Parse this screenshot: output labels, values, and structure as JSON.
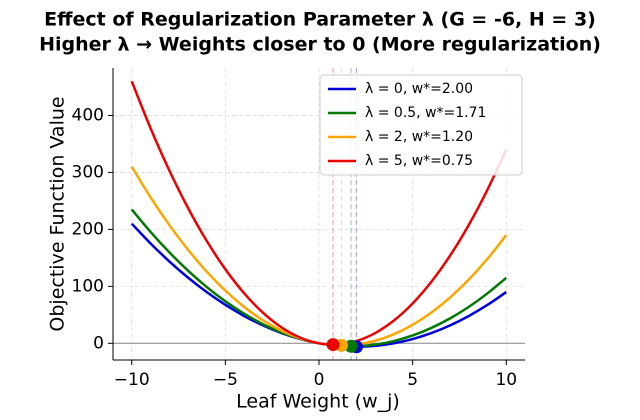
{
  "chart_data": {
    "type": "line",
    "title": "Effect of Regularization Parameter λ (G = -6, H = 3)",
    "subtitle": "Higher λ → Weights closer to 0 (More regularization)",
    "x_label": "Leaf Weight (w_j)",
    "y_label": "Objective Function Value",
    "x": [
      -10,
      -9,
      -8,
      -7,
      -6,
      -5,
      -4,
      -3,
      -2,
      -1,
      0,
      1,
      2,
      3,
      4,
      5,
      6,
      7,
      8,
      9,
      10
    ],
    "series": [
      {
        "name": "λ = 0, w*=2.00",
        "color": "#0000dd",
        "values": [
          210,
          175.5,
          144,
          115.5,
          90,
          67.5,
          48,
          31.5,
          18,
          7.5,
          0,
          -4.5,
          -6,
          -4.5,
          0,
          7.5,
          18,
          31.5,
          48,
          67.5,
          90
        ],
        "optimum": {
          "x": 2.0,
          "y": -6
        }
      },
      {
        "name": "λ = 0.5, w*=1.71",
        "color": "#007a00",
        "values": [
          235,
          195.75,
          160,
          127.75,
          99,
          73.75,
          52,
          33.75,
          19,
          7.75,
          0,
          -4.25,
          -5,
          -2.25,
          4,
          13.75,
          27,
          43.75,
          64,
          87.75,
          115
        ],
        "optimum": {
          "x": 1.7142857,
          "y": -5.142857
        }
      },
      {
        "name": "λ = 2, w*=1.20",
        "color": "#ffa500",
        "values": [
          310,
          256.5,
          208,
          164.5,
          126,
          92.5,
          64,
          40.5,
          22,
          8.5,
          0,
          -3.5,
          -2,
          4.5,
          16,
          32.5,
          54,
          80.5,
          112,
          148.5,
          190
        ],
        "optimum": {
          "x": 1.2,
          "y": -3.6
        }
      },
      {
        "name": "λ = 5, w*=0.75",
        "color": "#ee0000",
        "values": [
          460,
          378,
          304,
          238,
          180,
          130,
          88,
          54,
          28,
          10,
          0,
          -2,
          4,
          18,
          40,
          70,
          108,
          154,
          208,
          270,
          340
        ],
        "optimum": {
          "x": 0.75,
          "y": -2.25
        }
      }
    ],
    "xlim": [
      -11,
      11
    ],
    "ylim": [
      -29.3,
      483.3
    ],
    "xticks": [
      {
        "value": -10,
        "label": "−10"
      },
      {
        "value": -5,
        "label": "−5"
      },
      0,
      5,
      10
    ],
    "yticks": [
      0,
      100,
      200,
      300,
      400
    ],
    "grid": true,
    "legend": "upper right"
  }
}
